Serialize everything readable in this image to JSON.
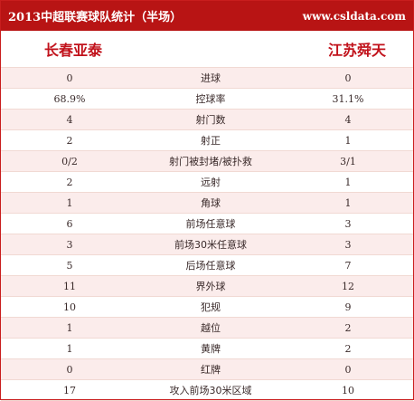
{
  "header": {
    "title": "2013中超联赛球队统计（半场）",
    "site": "www.csldata.com"
  },
  "teams": {
    "home": "长春亚泰",
    "away": "江苏舜天"
  },
  "stats": [
    {
      "home": "0",
      "label": "进球",
      "away": "0"
    },
    {
      "home": "68.9%",
      "label": "控球率",
      "away": "31.1%"
    },
    {
      "home": "4",
      "label": "射门数",
      "away": "4"
    },
    {
      "home": "2",
      "label": "射正",
      "away": "1"
    },
    {
      "home": "0/2",
      "label": "射门被封堵/被扑救",
      "away": "3/1"
    },
    {
      "home": "2",
      "label": "远射",
      "away": "1"
    },
    {
      "home": "1",
      "label": "角球",
      "away": "1"
    },
    {
      "home": "6",
      "label": "前场任意球",
      "away": "3"
    },
    {
      "home": "3",
      "label": "前场30米任意球",
      "away": "3"
    },
    {
      "home": "5",
      "label": "后场任意球",
      "away": "7"
    },
    {
      "home": "11",
      "label": "界外球",
      "away": "12"
    },
    {
      "home": "10",
      "label": "犯规",
      "away": "9"
    },
    {
      "home": "1",
      "label": "越位",
      "away": "2"
    },
    {
      "home": "1",
      "label": "黄牌",
      "away": "2"
    },
    {
      "home": "0",
      "label": "红牌",
      "away": "0"
    },
    {
      "home": "17",
      "label": "攻入前场30米区域",
      "away": "10"
    }
  ],
  "colors": {
    "banner": "#b81414",
    "team_text": "#c1121b",
    "row_shade": "#fbeceb",
    "divider": "#f1d9d3"
  }
}
